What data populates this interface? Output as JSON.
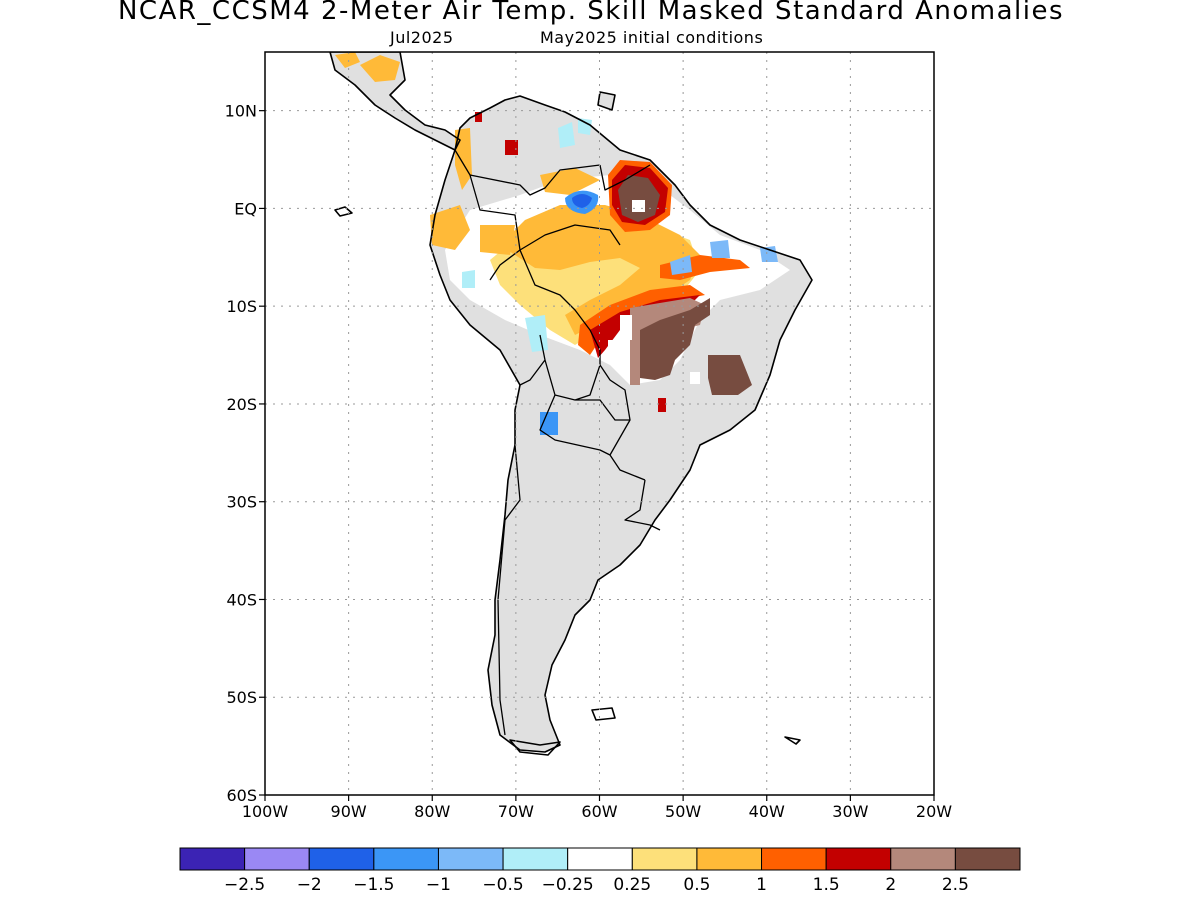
{
  "header": {
    "title": "NCAR_CCSM4 2-Meter Air Temp. Skill Masked Standard Anomalies",
    "target_month": "Jul2025",
    "init": "May2025 initial conditions"
  },
  "map": {
    "lon_range": [
      -100,
      -20
    ],
    "lat_range": [
      -60,
      16
    ],
    "x_ticks": [
      {
        "v": -100,
        "label": "100W"
      },
      {
        "v": -90,
        "label": "90W"
      },
      {
        "v": -80,
        "label": "80W"
      },
      {
        "v": -70,
        "label": "70W"
      },
      {
        "v": -60,
        "label": "60W"
      },
      {
        "v": -50,
        "label": "50W"
      },
      {
        "v": -40,
        "label": "40W"
      },
      {
        "v": -30,
        "label": "30W"
      },
      {
        "v": -20,
        "label": "20W"
      }
    ],
    "y_ticks": [
      {
        "v": 10,
        "label": "10N"
      },
      {
        "v": 0,
        "label": "EQ"
      },
      {
        "v": -10,
        "label": "10S"
      },
      {
        "v": -20,
        "label": "20S"
      },
      {
        "v": -30,
        "label": "30S"
      },
      {
        "v": -40,
        "label": "40S"
      },
      {
        "v": -50,
        "label": "50S"
      },
      {
        "v": -60,
        "label": "60S"
      }
    ],
    "land_color": "#e0e0e0"
  },
  "colorbar": {
    "colors": [
      "#3b23b4",
      "#9a88f4",
      "#1f61e8",
      "#3b96f6",
      "#7cb9f8",
      "#b0eef8",
      "#ffffff",
      "#fde07a",
      "#ffba38",
      "#ff6000",
      "#c30000",
      "#b4887b",
      "#774c40"
    ],
    "labels": [
      "-2.5",
      "-2",
      "-1.5",
      "-1",
      "-0.5",
      "-0.25",
      "0.25",
      "0.5",
      "1",
      "1.5",
      "2",
      "2.5"
    ]
  }
}
